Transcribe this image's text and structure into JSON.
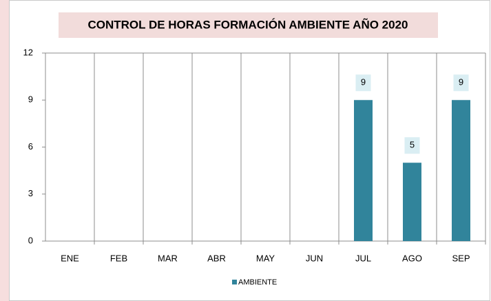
{
  "chart_data": {
    "type": "bar",
    "title": "CONTROL DE HORAS FORMACIÓN  AMBIENTE AÑO 2020",
    "categories": [
      "ENE",
      "FEB",
      "MAR",
      "ABR",
      "MAY",
      "JUN",
      "JUL",
      "AGO",
      "SEP"
    ],
    "series": [
      {
        "name": "AMBIENTE",
        "color": "#31849b",
        "values": [
          null,
          null,
          null,
          null,
          null,
          null,
          9,
          5,
          9
        ]
      }
    ],
    "ylim": [
      0,
      12
    ],
    "yticks": [
      0,
      3,
      6,
      9,
      12
    ],
    "legend": "bottom"
  }
}
